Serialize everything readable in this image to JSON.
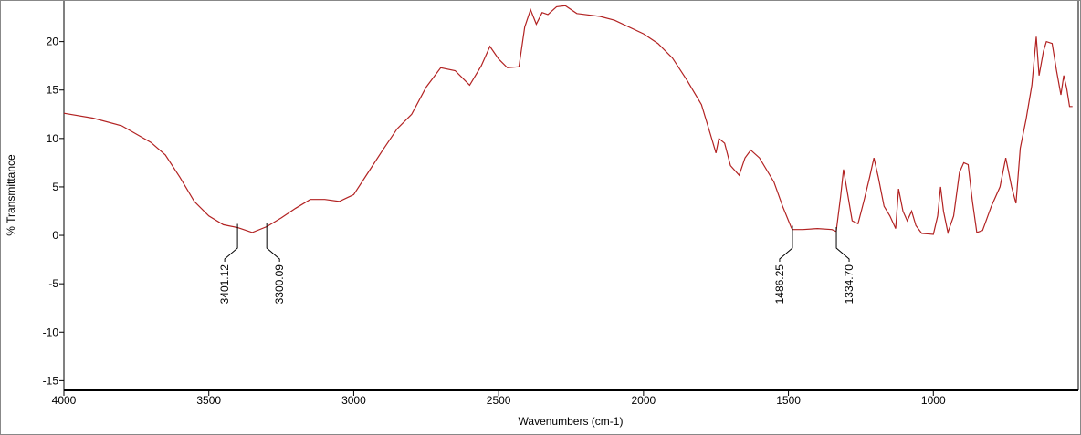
{
  "chart_data": {
    "type": "line",
    "xlabel": "Wavenumbers (cm-1)",
    "ylabel": "% Transmittance",
    "xlim": [
      4000,
      500
    ],
    "ylim": [
      -16,
      24.2
    ],
    "xticks": [
      4000,
      3500,
      3000,
      2500,
      2000,
      1500,
      1000
    ],
    "yticks": [
      -15,
      -10,
      -5,
      0,
      5,
      10,
      15,
      20
    ],
    "series": [
      {
        "color": "#b22222",
        "x": [
          4000,
          3900,
          3800,
          3700,
          3650,
          3600,
          3550,
          3500,
          3450,
          3400,
          3350,
          3300,
          3250,
          3200,
          3150,
          3100,
          3050,
          3000,
          2950,
          2900,
          2850,
          2800,
          2750,
          2700,
          2650,
          2600,
          2560,
          2530,
          2500,
          2470,
          2430,
          2410,
          2390,
          2370,
          2350,
          2330,
          2300,
          2270,
          2230,
          2150,
          2100,
          2000,
          1950,
          1900,
          1850,
          1800,
          1770,
          1750,
          1740,
          1720,
          1700,
          1670,
          1650,
          1630,
          1600,
          1550,
          1520,
          1490,
          1486,
          1450,
          1400,
          1350,
          1335,
          1320,
          1310,
          1300,
          1280,
          1260,
          1240,
          1220,
          1205,
          1190,
          1170,
          1150,
          1130,
          1120,
          1105,
          1090,
          1075,
          1060,
          1040,
          1000,
          985,
          975,
          965,
          950,
          930,
          910,
          895,
          880,
          865,
          850,
          830,
          800,
          770,
          750,
          730,
          715,
          700,
          680,
          660,
          645,
          635,
          620,
          610,
          590,
          575,
          560,
          550,
          540,
          530,
          520
        ],
        "values": [
          12.6,
          12.1,
          11.3,
          9.6,
          8.3,
          6.0,
          3.5,
          2.0,
          1.1,
          0.8,
          0.3,
          0.9,
          1.8,
          2.8,
          3.7,
          3.7,
          3.5,
          4.2,
          6.5,
          8.8,
          11.0,
          12.5,
          15.3,
          17.3,
          17.0,
          15.5,
          17.5,
          19.5,
          18.2,
          17.3,
          17.4,
          21.5,
          23.3,
          21.8,
          23.0,
          22.8,
          23.6,
          23.7,
          22.9,
          22.6,
          22.2,
          20.8,
          19.8,
          18.3,
          16.0,
          13.5,
          10.5,
          8.5,
          10.0,
          9.5,
          7.2,
          6.2,
          8.0,
          8.8,
          8.0,
          5.5,
          3.0,
          0.8,
          0.6,
          0.6,
          0.7,
          0.6,
          0.4,
          4.0,
          6.8,
          5.0,
          1.5,
          1.2,
          3.5,
          6.0,
          8.0,
          6.0,
          3.0,
          2.0,
          0.7,
          4.8,
          2.5,
          1.5,
          2.5,
          1.0,
          0.2,
          0.1,
          2.0,
          5.0,
          2.5,
          0.3,
          2.0,
          6.5,
          7.5,
          7.3,
          3.5,
          0.3,
          0.5,
          3.0,
          5.0,
          8.0,
          5.0,
          3.3,
          9.0,
          12.0,
          15.5,
          20.5,
          16.5,
          19.0,
          20.0,
          19.8,
          17.0,
          14.5,
          16.5,
          15.2,
          13.3,
          13.3
        ]
      }
    ],
    "annotations": [
      {
        "x": 3401.12,
        "text": "3401.12"
      },
      {
        "x": 3300.09,
        "text": "3300.09"
      },
      {
        "x": 1486.25,
        "text": "1486.25"
      },
      {
        "x": 1334.7,
        "text": "1334.70"
      }
    ]
  }
}
